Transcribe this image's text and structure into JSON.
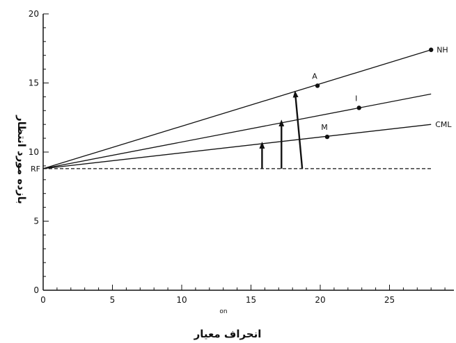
{
  "chart_data": {
    "type": "line",
    "title": "",
    "xlabel": "انحراف معیار",
    "ylabel": "بازده مورد انتظار",
    "xlim": [
      0,
      28.5
    ],
    "ylim": [
      0,
      20
    ],
    "x_ticks": [
      "0",
      "5",
      "10",
      "15",
      "20",
      "25"
    ],
    "y_ticks": [
      "0",
      "5",
      "10",
      "15",
      "20"
    ],
    "x_axis_fragment": "on",
    "risk_free": {
      "label": "RF",
      "y": 8.8
    },
    "series": [
      {
        "name": "NH",
        "x": [
          0,
          28
        ],
        "y": [
          8.8,
          17.4
        ]
      },
      {
        "name": "",
        "x": [
          0,
          28
        ],
        "y": [
          8.8,
          14.2
        ]
      },
      {
        "name": "CML",
        "x": [
          0,
          28
        ],
        "y": [
          8.8,
          12.0
        ]
      }
    ],
    "points": [
      {
        "label": "A",
        "x": 19.8,
        "y": 14.8
      },
      {
        "label": "I",
        "x": 22.8,
        "y": 13.2
      },
      {
        "label": "M",
        "x": 20.5,
        "y": 11.1
      },
      {
        "label": "NH",
        "x": 28,
        "y": 17.4
      }
    ],
    "arrows": [
      {
        "x0": 15.8,
        "y0": 8.8,
        "x1": 15.8,
        "y1": 10.5
      },
      {
        "x0": 17.2,
        "y0": 8.8,
        "x1": 17.2,
        "y1": 12.1
      },
      {
        "x0": 18.7,
        "y0": 8.8,
        "x1": 18.2,
        "y1": 14.2
      }
    ],
    "grid": false,
    "legend": "none",
    "colors": {
      "line": "#111111",
      "background": "#ffffff"
    }
  }
}
